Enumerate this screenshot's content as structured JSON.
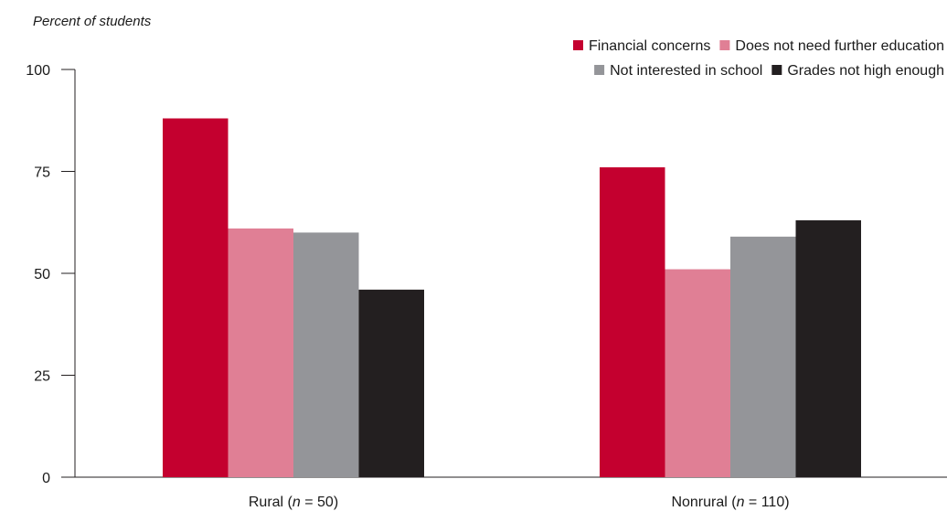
{
  "chart_data": {
    "type": "bar",
    "ylabel": "Percent of students",
    "ylim": [
      0,
      100
    ],
    "yticks": [
      0,
      25,
      50,
      75,
      100
    ],
    "grid": false,
    "legend_position": "top-right",
    "categories": [
      {
        "label": "Rural",
        "n_prefix": "(",
        "n_var": "n",
        "n_value": " = 50)"
      },
      {
        "label": "Nonrural",
        "n_prefix": "(",
        "n_var": "n",
        "n_value": " = 110)"
      }
    ],
    "series": [
      {
        "name": "Financial concerns",
        "color": "#c4002f",
        "values": [
          88,
          76
        ]
      },
      {
        "name": "Does not need further education",
        "color": "#e07f95",
        "values": [
          61,
          51
        ]
      },
      {
        "name": "Not interested in school",
        "color": "#949599",
        "values": [
          60,
          59
        ]
      },
      {
        "name": "Grades not high enough",
        "color": "#231f20",
        "values": [
          46,
          63
        ]
      }
    ]
  }
}
